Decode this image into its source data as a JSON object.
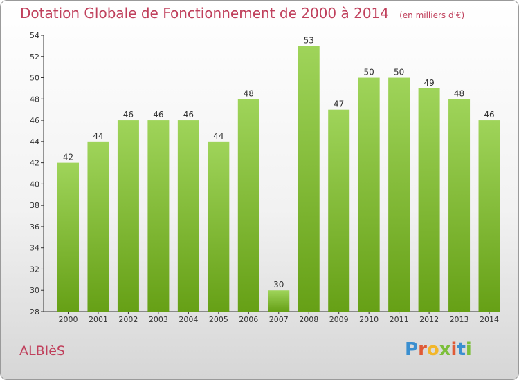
{
  "header": {
    "title": "Dotation Globale de Fonctionnement de 2000 à 2014",
    "unit": "(en milliers d'€)"
  },
  "footer": {
    "commune": "ALBIèS",
    "logo": "Proxiti"
  },
  "colors": {
    "bar_top": "#9fd45a",
    "bar_bottom": "#66a016",
    "title": "#c0405c"
  },
  "chart_data": {
    "type": "bar",
    "categories": [
      "2000",
      "2001",
      "2002",
      "2003",
      "2004",
      "2005",
      "2006",
      "2007",
      "2008",
      "2009",
      "2010",
      "2011",
      "2012",
      "2013",
      "2014"
    ],
    "values": [
      42,
      44,
      46,
      46,
      46,
      44,
      48,
      30,
      53,
      47,
      50,
      50,
      49,
      48,
      46
    ],
    "title": "Dotation Globale de Fonctionnement de 2000 à 2014",
    "xlabel": "",
    "ylabel": "",
    "ylim": [
      28,
      54
    ],
    "yticks": [
      28,
      30,
      32,
      34,
      36,
      38,
      40,
      42,
      44,
      46,
      48,
      50,
      52,
      54
    ],
    "grid": false,
    "data_labels": true
  }
}
